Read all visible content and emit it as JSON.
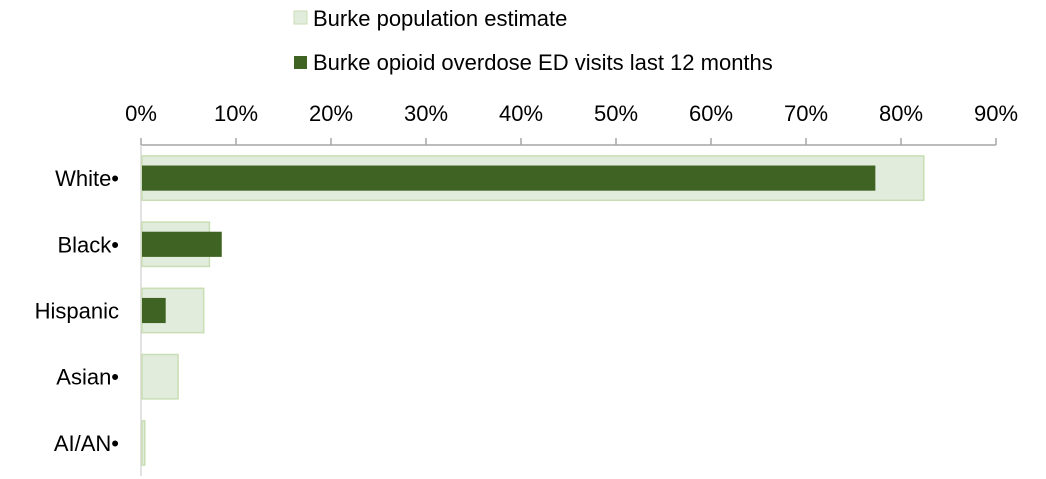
{
  "chart_data": {
    "type": "bar",
    "orientation": "horizontal",
    "categories": [
      "White•",
      "Black•",
      "Hispanic",
      "Asian•",
      "AI/AN•"
    ],
    "series": [
      {
        "name": "Burke population estimate",
        "values": [
          82.4,
          7.2,
          6.6,
          3.9,
          0.4
        ],
        "color": "#e2ecdc",
        "stroke": "#c9deb4"
      },
      {
        "name": "Burke opioid overdose ED visits last 12 months",
        "values": [
          77.3,
          8.5,
          2.6,
          0,
          0
        ],
        "color": "#3f6323"
      }
    ],
    "x_ticks": [
      "0%",
      "10%",
      "20%",
      "30%",
      "40%",
      "50%",
      "60%",
      "70%",
      "80%",
      "90%"
    ],
    "xlim": [
      0,
      90
    ],
    "axis_position": "top",
    "legend_position": "top",
    "grid": false
  }
}
